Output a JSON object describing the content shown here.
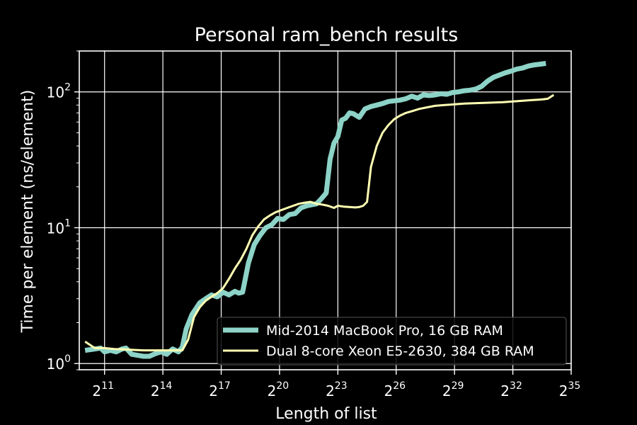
{
  "chart_data": {
    "type": "line",
    "title": "Personal ram_bench results",
    "xlabel": "Length of list",
    "ylabel": "Time per element (ns/element)",
    "x_scale": "log2",
    "y_scale": "log10",
    "xlim_exponent": [
      9.7,
      35.0
    ],
    "ylim": [
      0.9,
      200
    ],
    "x_ticks": [
      {
        "base": "2",
        "exp": "11",
        "value_exp": 11
      },
      {
        "base": "2",
        "exp": "14",
        "value_exp": 14
      },
      {
        "base": "2",
        "exp": "17",
        "value_exp": 17
      },
      {
        "base": "2",
        "exp": "20",
        "value_exp": 20
      },
      {
        "base": "2",
        "exp": "23",
        "value_exp": 23
      },
      {
        "base": "2",
        "exp": "26",
        "value_exp": 26
      },
      {
        "base": "2",
        "exp": "29",
        "value_exp": 29
      },
      {
        "base": "2",
        "exp": "32",
        "value_exp": 32
      },
      {
        "base": "2",
        "exp": "35",
        "value_exp": 35
      }
    ],
    "y_ticks": [
      {
        "base": "10",
        "exp": "0",
        "value": 1
      },
      {
        "base": "10",
        "exp": "1",
        "value": 10
      },
      {
        "base": "10",
        "exp": "2",
        "value": 100
      }
    ],
    "grid": true,
    "legend_position": "lower-right",
    "series": [
      {
        "name": "Mid-2014 MacBook Pro, 16 GB RAM",
        "color": "#8dd3c7",
        "x_exp": [
          10,
          10.5,
          10.8,
          11,
          11.3,
          11.6,
          11.9,
          12.1,
          12.4,
          12.7,
          13,
          13.3,
          13.6,
          13.9,
          14.2,
          14.5,
          14.8,
          15,
          15.2,
          15.5,
          15.9,
          16.2,
          16.5,
          16.8,
          17.1,
          17.4,
          17.7,
          17.9,
          18.1,
          18.4,
          18.7,
          19,
          19.3,
          19.6,
          19.9,
          20.2,
          20.5,
          20.8,
          21.1,
          21.4,
          21.7,
          21.9,
          22.1,
          22.4,
          22.6,
          22.8,
          23,
          23.2,
          23.4,
          23.6,
          23.8,
          24.1,
          24.4,
          24.7,
          25,
          25.3,
          25.6,
          25.9,
          26.2,
          26.5,
          26.8,
          27.1,
          27.4,
          27.7,
          28,
          28.3,
          28.6,
          28.9,
          29.2,
          29.5,
          29.8,
          30.1,
          30.4,
          30.7,
          31,
          31.3,
          31.6,
          31.9,
          32.2,
          32.5,
          32.8,
          33.1,
          33.4,
          33.7
        ],
        "values": [
          1.25,
          1.28,
          1.3,
          1.22,
          1.25,
          1.22,
          1.28,
          1.3,
          1.17,
          1.15,
          1.13,
          1.13,
          1.18,
          1.22,
          1.17,
          1.28,
          1.22,
          1.32,
          1.8,
          2.3,
          2.8,
          3.0,
          3.2,
          3.1,
          3.35,
          3.2,
          3.4,
          3.3,
          3.35,
          5.5,
          7.5,
          8.8,
          10,
          10.5,
          11.7,
          11.5,
          12.5,
          12.7,
          14,
          14.5,
          14.8,
          15,
          16,
          18,
          32,
          42,
          47,
          62,
          64,
          70,
          69,
          65,
          75,
          78,
          80,
          82,
          85,
          86,
          87,
          89,
          93,
          90,
          95,
          94,
          95,
          97,
          96,
          99,
          100,
          102,
          103,
          105,
          110,
          120,
          128,
          133,
          138,
          142,
          147,
          150,
          155,
          158,
          160,
          162
        ]
      },
      {
        "name": "Dual 8-core Xeon E5-2630, 384 GB RAM",
        "color": "#ffffb3",
        "x_exp": [
          10,
          10.5,
          11,
          11.5,
          12,
          12.5,
          13,
          13.5,
          14,
          14.5,
          15,
          15.3,
          15.6,
          15.9,
          16.2,
          16.5,
          16.8,
          17.1,
          17.4,
          17.7,
          18,
          18.3,
          18.6,
          18.9,
          19.2,
          19.5,
          19.8,
          20.1,
          20.4,
          20.7,
          21,
          21.3,
          21.6,
          21.9,
          22.2,
          22.5,
          22.8,
          23,
          23.3,
          23.6,
          23.9,
          24.1,
          24.3,
          24.5,
          24.7,
          25,
          25.3,
          25.6,
          25.9,
          26.2,
          26.5,
          26.8,
          27.2,
          27.6,
          28,
          28.5,
          29,
          29.5,
          30,
          30.5,
          31,
          31.5,
          32,
          32.5,
          33,
          33.5,
          33.8,
          34.1
        ],
        "values": [
          1.45,
          1.3,
          1.3,
          1.28,
          1.27,
          1.26,
          1.25,
          1.25,
          1.25,
          1.25,
          1.25,
          1.5,
          2.2,
          2.6,
          2.9,
          3.1,
          3.3,
          3.6,
          4.2,
          5.0,
          5.8,
          7.0,
          8.8,
          10.2,
          11.5,
          12.3,
          13.0,
          13.5,
          14.0,
          14.5,
          15.0,
          15.3,
          15.5,
          15.0,
          14.8,
          14.5,
          14.0,
          14.5,
          14.3,
          14.2,
          14.1,
          14.2,
          14.5,
          15.5,
          28,
          40,
          50,
          57,
          63,
          67,
          70,
          72,
          75,
          77,
          79,
          80,
          81,
          82,
          82.5,
          83,
          83.5,
          84,
          85,
          86,
          87,
          88,
          89,
          95
        ]
      }
    ]
  }
}
